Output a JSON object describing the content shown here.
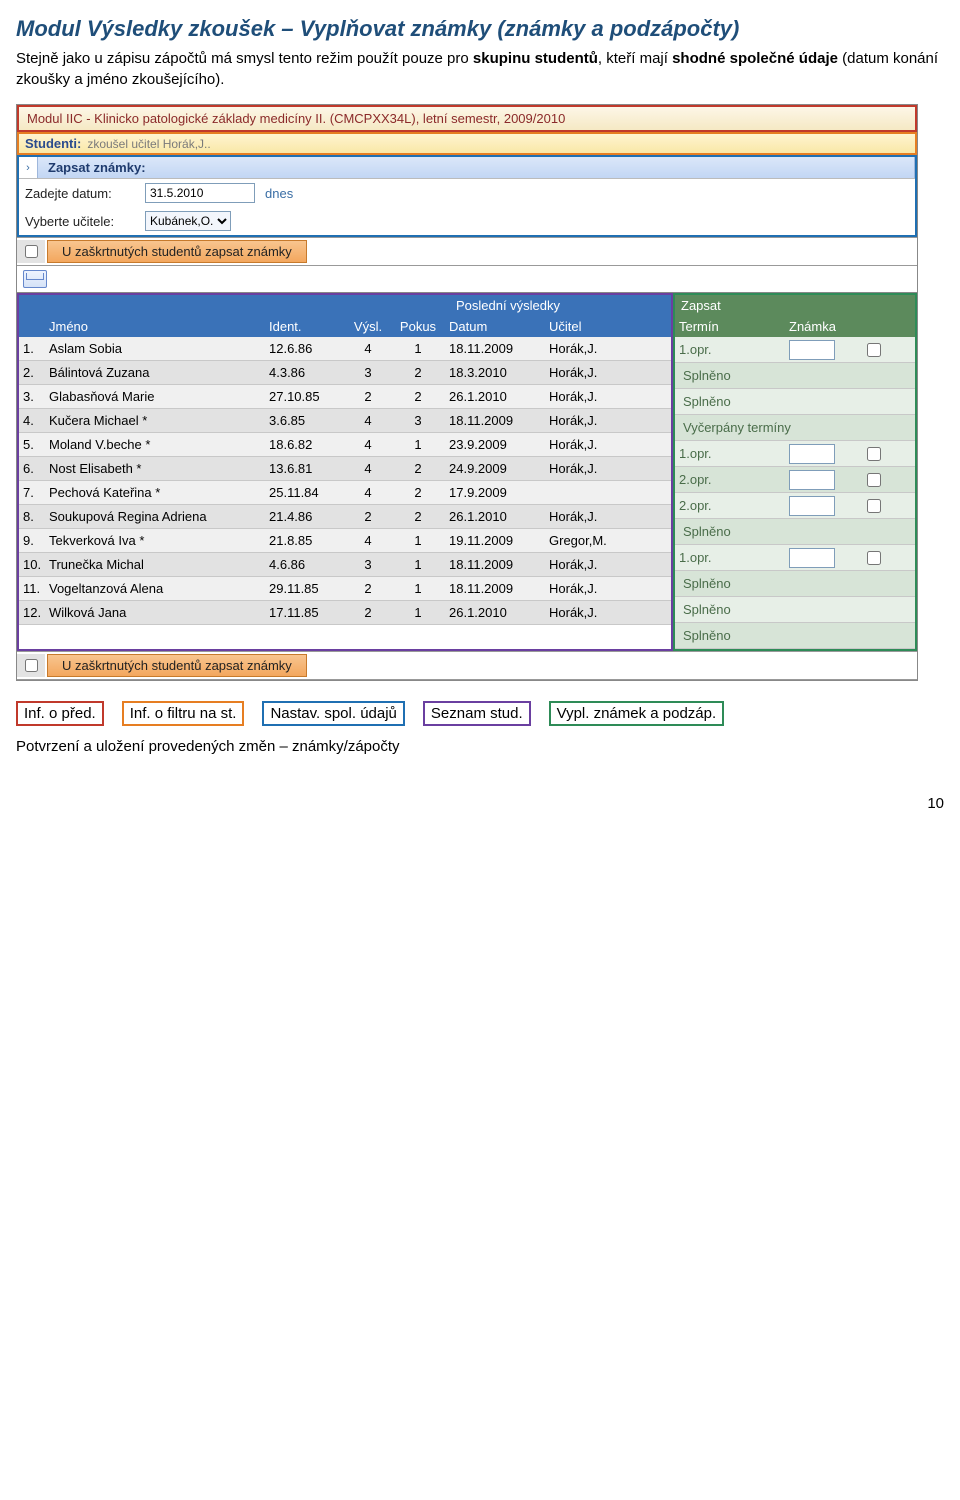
{
  "doc": {
    "heading": "Modul Výsledky zkoušek – Vyplňovat známky (známky a podzápočty)",
    "text_before": "Stejně jako u zápisu zápočtů má smysl tento režim použít pouze pro ",
    "text_bold1": "skupinu studentů",
    "text_mid": ", kteří mají ",
    "text_bold2": "shodné společné údaje",
    "text_after": " (datum konání zkoušky a jméno zkoušejícího).",
    "legend": {
      "l1": "Inf. o před.",
      "l2": "Inf. o filtru na st.",
      "l3": "Nastav. spol. údajů",
      "l4": "Seznam stud.",
      "l5": "Vypl. známek a podzáp."
    },
    "bottom": "Potvrzení a uložení provedených změn – známky/zápočty",
    "pageno": "10"
  },
  "module": {
    "header": "Modul IIC - Klinicko patologické základy medicíny II. (CMCPXX34L), letní semestr, 2009/2010",
    "students_label": "Studenti:",
    "students_filter": "zkoušel učitel Horák,J..",
    "section_title": "Zapsat známky:",
    "date_label": "Zadejte datum:",
    "date_value": "31.5.2010",
    "date_link": "dnes",
    "teacher_label": "Vyberte učitele:",
    "teacher_value": "Kubánek,O.",
    "orange_button": "U zaškrtnutých studentů zapsat známky"
  },
  "headers": {
    "left_group": "Poslední výsledky",
    "jmeno": "Jméno",
    "ident": "Ident.",
    "vysl": "Výsl.",
    "pokus": "Pokus",
    "datum": "Datum",
    "ucitel": "Učitel",
    "right_group": "Zapsat",
    "termin": "Termín",
    "znamka": "Známka"
  },
  "rows": [
    {
      "n": "1.",
      "name": "Aslam Sobia",
      "ident": "12.6.86",
      "vysl": "4",
      "pokus": "1",
      "datum": "18.11.2009",
      "ucitel": "Horák,J.",
      "termin": "1.opr.",
      "splneno": false,
      "full": ""
    },
    {
      "n": "2.",
      "name": "Bálintová Zuzana",
      "ident": "4.3.86",
      "vysl": "3",
      "pokus": "2",
      "datum": "18.3.2010",
      "ucitel": "Horák,J.",
      "termin": "",
      "splneno": true,
      "full": "Splněno"
    },
    {
      "n": "3.",
      "name": "Glabasňová Marie",
      "ident": "27.10.85",
      "vysl": "2",
      "pokus": "2",
      "datum": "26.1.2010",
      "ucitel": "Horák,J.",
      "termin": "",
      "splneno": true,
      "full": "Splněno"
    },
    {
      "n": "4.",
      "name": "Kučera Michael *",
      "ident": "3.6.85",
      "vysl": "4",
      "pokus": "3",
      "datum": "18.11.2009",
      "ucitel": "Horák,J.",
      "termin": "",
      "splneno": true,
      "full": "Vyčerpány termíny"
    },
    {
      "n": "5.",
      "name": "Moland V.beche *",
      "ident": "18.6.82",
      "vysl": "4",
      "pokus": "1",
      "datum": "23.9.2009",
      "ucitel": "Horák,J.",
      "termin": "1.opr.",
      "splneno": false,
      "full": ""
    },
    {
      "n": "6.",
      "name": "Nost Elisabeth *",
      "ident": "13.6.81",
      "vysl": "4",
      "pokus": "2",
      "datum": "24.9.2009",
      "ucitel": "Horák,J.",
      "termin": "2.opr.",
      "splneno": false,
      "full": ""
    },
    {
      "n": "7.",
      "name": "Pechová Kateřina *",
      "ident": "25.11.84",
      "vysl": "4",
      "pokus": "2",
      "datum": "17.9.2009",
      "ucitel": "",
      "termin": "2.opr.",
      "splneno": false,
      "full": ""
    },
    {
      "n": "8.",
      "name": "Soukupová Regina Adriena",
      "ident": "21.4.86",
      "vysl": "2",
      "pokus": "2",
      "datum": "26.1.2010",
      "ucitel": "Horák,J.",
      "termin": "",
      "splneno": true,
      "full": "Splněno"
    },
    {
      "n": "9.",
      "name": "Tekverková Iva *",
      "ident": "21.8.85",
      "vysl": "4",
      "pokus": "1",
      "datum": "19.11.2009",
      "ucitel": "Gregor,M.",
      "termin": "1.opr.",
      "splneno": false,
      "full": ""
    },
    {
      "n": "10.",
      "name": "Trunečka Michal",
      "ident": "4.6.86",
      "vysl": "3",
      "pokus": "1",
      "datum": "18.11.2009",
      "ucitel": "Horák,J.",
      "termin": "",
      "splneno": true,
      "full": "Splněno"
    },
    {
      "n": "11.",
      "name": "Vogeltanzová Alena",
      "ident": "29.11.85",
      "vysl": "2",
      "pokus": "1",
      "datum": "18.11.2009",
      "ucitel": "Horák,J.",
      "termin": "",
      "splneno": true,
      "full": "Splněno"
    },
    {
      "n": "12.",
      "name": "Wilková Jana",
      "ident": "17.11.85",
      "vysl": "2",
      "pokus": "1",
      "datum": "26.1.2010",
      "ucitel": "Horák,J.",
      "termin": "",
      "splneno": true,
      "full": "Splněno"
    }
  ],
  "colors": {
    "red": "#c0392b",
    "orange": "#e67e22",
    "blue": "#1f6fb2",
    "purple": "#6a3fa0",
    "green": "#2e8b57"
  }
}
